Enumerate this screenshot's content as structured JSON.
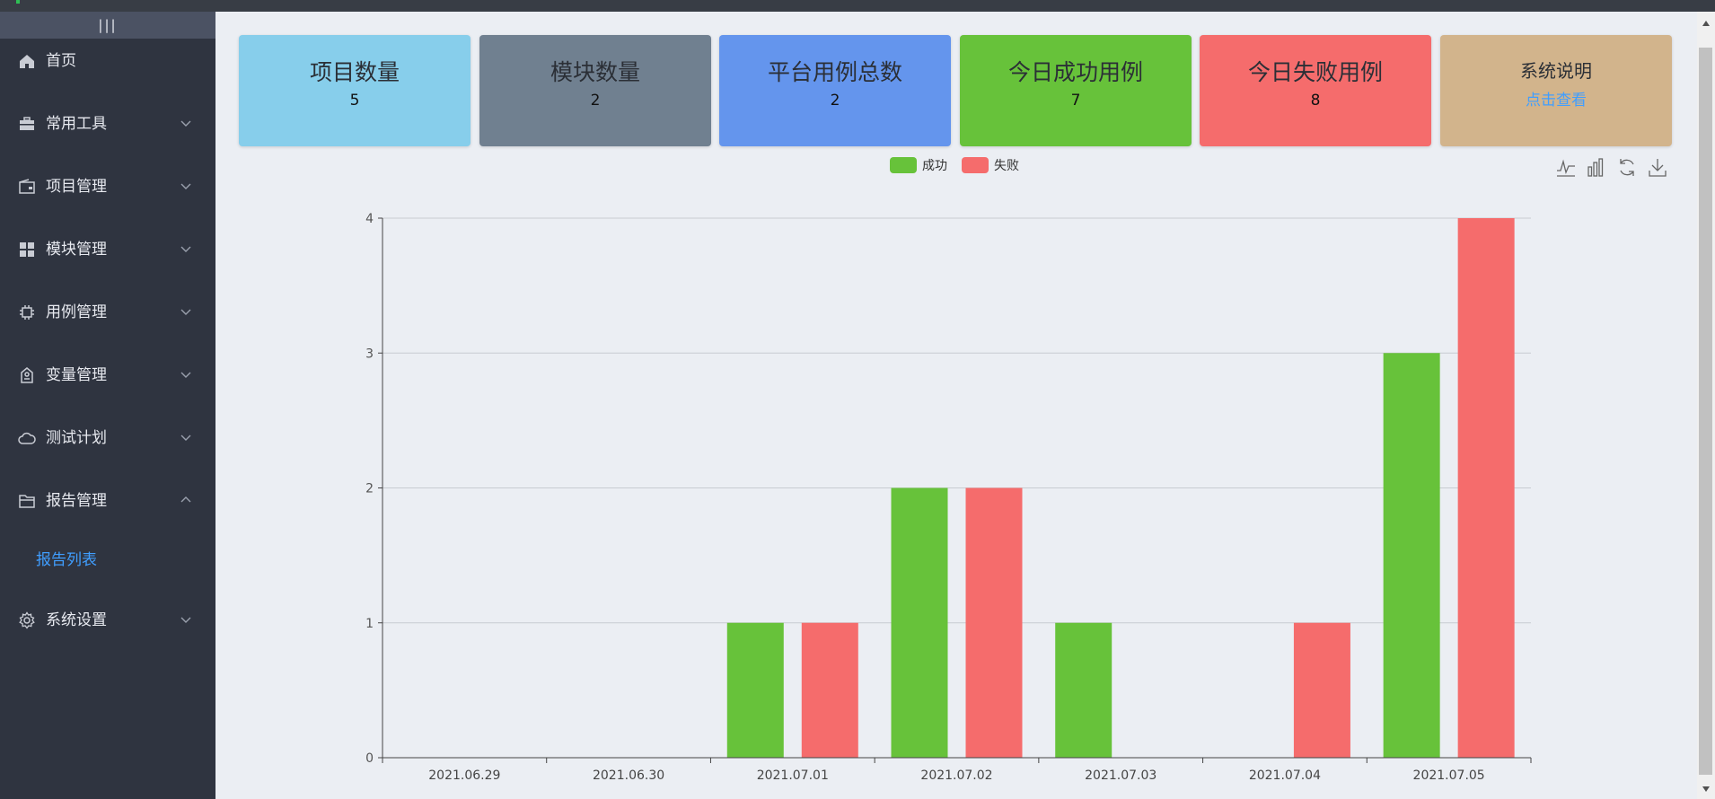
{
  "sidebar": {
    "collapse_glyph": "|||",
    "items": [
      {
        "label": "首页",
        "icon": "home-icon"
      },
      {
        "label": "常用工具",
        "icon": "toolbox-icon"
      },
      {
        "label": "项目管理",
        "icon": "wallet-icon"
      },
      {
        "label": "模块管理",
        "icon": "grid-icon"
      },
      {
        "label": "用例管理",
        "icon": "chip-icon"
      },
      {
        "label": "变量管理",
        "icon": "tag-icon"
      },
      {
        "label": "测试计划",
        "icon": "cloud-icon"
      },
      {
        "label": "报告管理",
        "icon": "folder-icon"
      },
      {
        "label": "系统设置",
        "icon": "gear-icon"
      }
    ],
    "active_sub": "报告列表"
  },
  "cards": [
    {
      "title": "项目数量",
      "value": "5",
      "color": "#87ceeb"
    },
    {
      "title": "模块数量",
      "value": "2",
      "color": "#708090"
    },
    {
      "title": "平台用例总数",
      "value": "2",
      "color": "#6495ed"
    },
    {
      "title": "今日成功用例",
      "value": "7",
      "color": "#67c23a"
    },
    {
      "title": "今日失败用例",
      "value": "8",
      "color": "#f56c6c"
    },
    {
      "title": "系统说明",
      "value": "点击查看",
      "color": "#d2b48c"
    }
  ],
  "toolbox": [
    "line-chart-icon",
    "bar-chart-icon",
    "refresh-icon",
    "download-icon"
  ],
  "chart_data": {
    "type": "bar",
    "categories": [
      "2021.06.29",
      "2021.06.30",
      "2021.07.01",
      "2021.07.02",
      "2021.07.03",
      "2021.07.04",
      "2021.07.05"
    ],
    "series": [
      {
        "name": "成功",
        "color": "#67c23a",
        "values": [
          0,
          0,
          1,
          2,
          1,
          0,
          3
        ]
      },
      {
        "name": "失败",
        "color": "#f56c6c",
        "values": [
          0,
          0,
          1,
          2,
          0,
          1,
          4
        ]
      }
    ],
    "ylim": [
      0,
      4
    ],
    "yticks": [
      0,
      1,
      2,
      3,
      4
    ],
    "grid": true,
    "legend": "top-center"
  }
}
